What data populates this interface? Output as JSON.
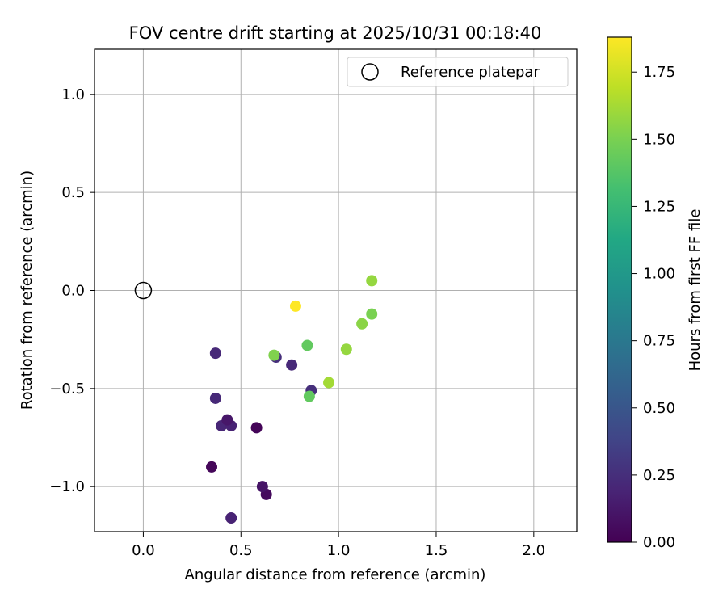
{
  "chart_data": {
    "type": "scatter",
    "title": "FOV centre drift starting at 2025/10/31 00:18:40",
    "xlabel": "Angular distance from reference (arcmin)",
    "ylabel": "Rotation from reference (arcmin)",
    "xlim": [
      -0.25,
      2.22
    ],
    "ylim": [
      -1.23,
      1.23
    ],
    "xticks": [
      0.0,
      0.5,
      1.0,
      1.5,
      2.0
    ],
    "xtick_labels": [
      "0.0",
      "0.5",
      "1.0",
      "1.5",
      "2.0"
    ],
    "yticks": [
      -1.0,
      -0.5,
      0.0,
      0.5,
      1.0
    ],
    "ytick_labels": [
      "−1.0",
      "−0.5",
      "0.0",
      "0.5",
      "1.0"
    ],
    "grid": true,
    "reference": {
      "x": 0.0,
      "y": 0.0,
      "label": "Reference platepar"
    },
    "legend_position": "top-right",
    "colorbar": {
      "label": "Hours from first FF file",
      "colormap": "viridis",
      "range": [
        0.0,
        1.88
      ],
      "ticks": [
        0.0,
        0.25,
        0.5,
        0.75,
        1.0,
        1.25,
        1.5,
        1.75
      ],
      "tick_labels": [
        "0.00",
        "0.25",
        "0.50",
        "0.75",
        "1.00",
        "1.25",
        "1.50",
        "1.75"
      ]
    },
    "points": [
      {
        "x": 0.45,
        "y": -1.16,
        "h": 0.18
      },
      {
        "x": 0.63,
        "y": -1.04,
        "h": 0.05
      },
      {
        "x": 0.61,
        "y": -1.0,
        "h": 0.1
      },
      {
        "x": 0.35,
        "y": -0.9,
        "h": 0.03
      },
      {
        "x": 0.58,
        "y": -0.7,
        "h": 0.02
      },
      {
        "x": 0.4,
        "y": -0.69,
        "h": 0.2
      },
      {
        "x": 0.45,
        "y": -0.69,
        "h": 0.18
      },
      {
        "x": 0.43,
        "y": -0.66,
        "h": 0.12
      },
      {
        "x": 0.37,
        "y": -0.55,
        "h": 0.22
      },
      {
        "x": 0.37,
        "y": -0.32,
        "h": 0.22
      },
      {
        "x": 0.68,
        "y": -0.34,
        "h": 0.25
      },
      {
        "x": 0.76,
        "y": -0.38,
        "h": 0.22
      },
      {
        "x": 0.86,
        "y": -0.51,
        "h": 0.25
      },
      {
        "x": 0.85,
        "y": -0.54,
        "h": 1.42
      },
      {
        "x": 0.84,
        "y": -0.28,
        "h": 1.42
      },
      {
        "x": 0.67,
        "y": -0.33,
        "h": 1.52
      },
      {
        "x": 0.95,
        "y": -0.47,
        "h": 1.62
      },
      {
        "x": 1.04,
        "y": -0.3,
        "h": 1.58
      },
      {
        "x": 1.12,
        "y": -0.17,
        "h": 1.55
      },
      {
        "x": 1.17,
        "y": -0.12,
        "h": 1.5
      },
      {
        "x": 1.17,
        "y": 0.05,
        "h": 1.58
      },
      {
        "x": 0.78,
        "y": -0.08,
        "h": 1.88
      }
    ]
  }
}
